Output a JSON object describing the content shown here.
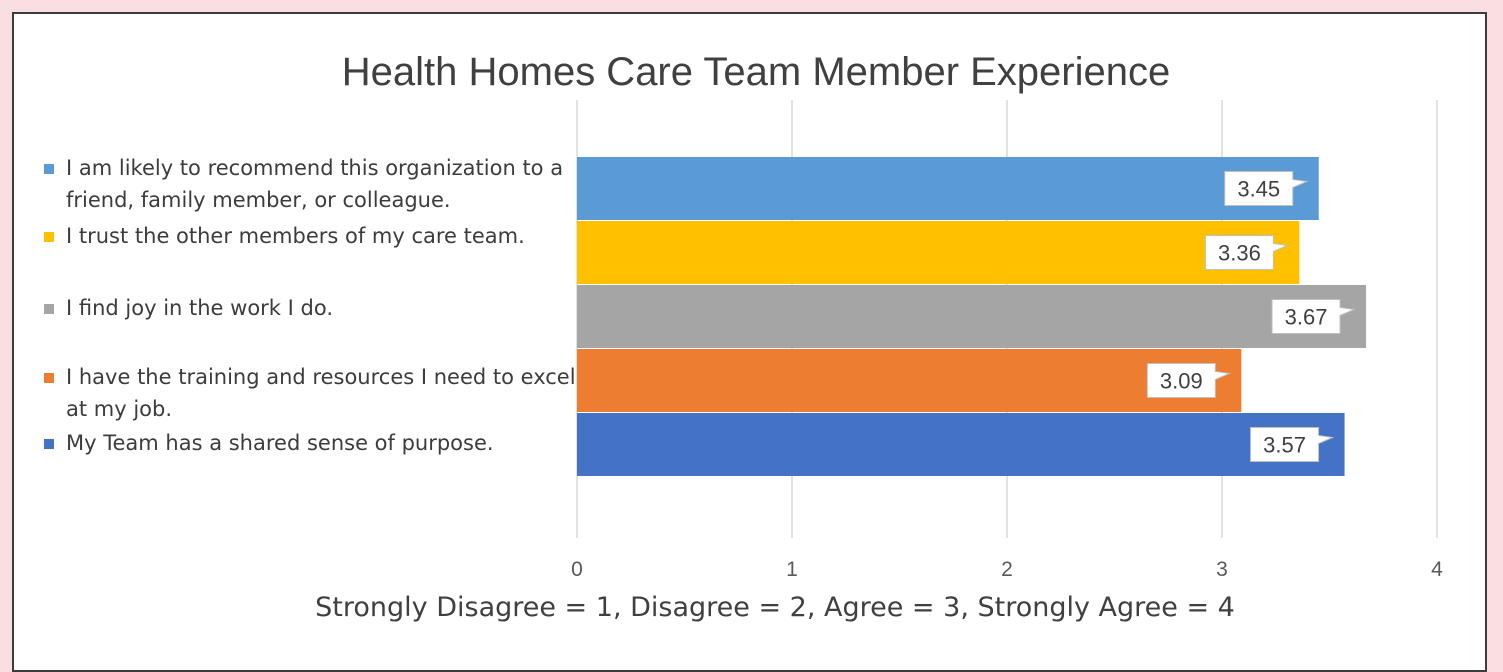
{
  "chart_data": {
    "type": "bar",
    "orientation": "horizontal",
    "title": "Health Homes Care Team Member Experience",
    "xlabel": "Strongly Disagree = 1, Disagree = 2, Agree = 3, Strongly Agree = 4",
    "xlim": [
      0,
      4
    ],
    "x_ticks": [
      "0",
      "1",
      "2",
      "3",
      "4"
    ],
    "grid": true,
    "legend_position": "left",
    "series": [
      {
        "name": "I am likely to recommend this organization to a friend, family member, or colleague.",
        "value": 3.45,
        "label": "3.45",
        "color": "#5b9bd5"
      },
      {
        "name": "I trust the other members of my care team.",
        "value": 3.36,
        "label": "3.36",
        "color": "#ffc000"
      },
      {
        "name": "I find joy in the work I do.",
        "value": 3.67,
        "label": "3.67",
        "color": "#a5a5a5"
      },
      {
        "name": "I have the training and resources I need to excel at my job.",
        "value": 3.09,
        "label": "3.09",
        "color": "#ed7d31"
      },
      {
        "name": "My Team has a shared sense of purpose.",
        "value": 3.57,
        "label": "3.57",
        "color": "#4472c4"
      }
    ]
  }
}
